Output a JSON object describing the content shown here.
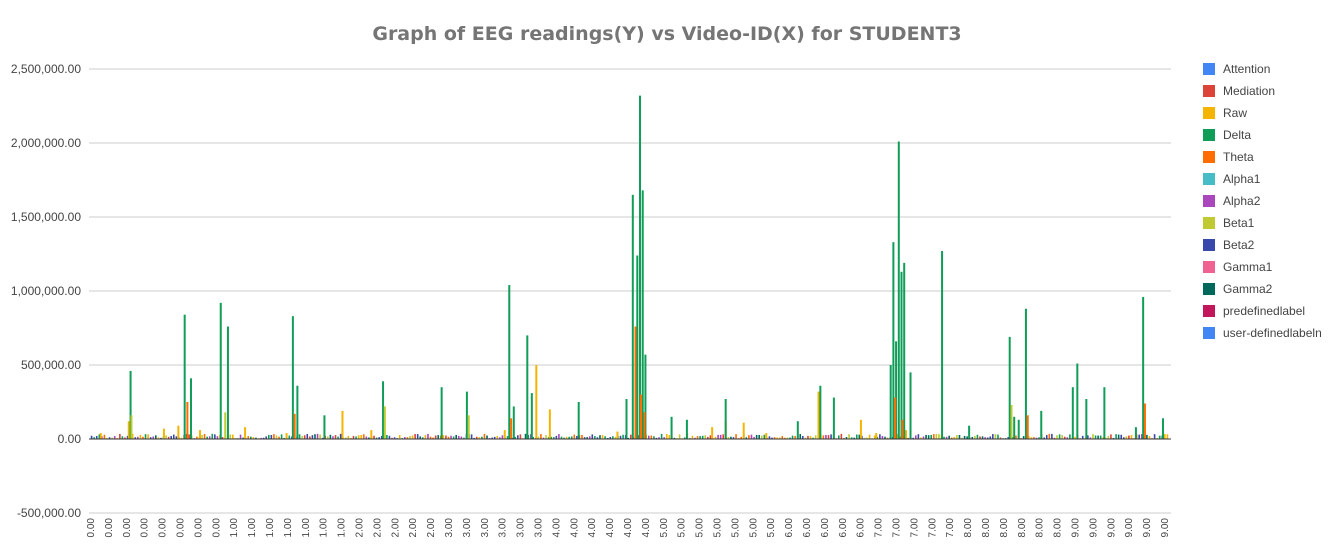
{
  "chart_data": {
    "type": "bar",
    "title": "Graph of EEG readings(Y) vs Video-ID(X) for STUDENT3",
    "xlabel": "",
    "ylabel": "",
    "ylim": [
      -500000,
      2500000
    ],
    "y_ticks": [
      -500000,
      0,
      500000,
      1000000,
      1500000,
      2000000,
      2500000
    ],
    "y_tick_labels": [
      "-500,000.00",
      "0.00",
      "500,000.00",
      "1,000,000.00",
      "1,500,000.00",
      "2,000,000.00",
      "2,500,000.00"
    ],
    "grid": true,
    "legend_position": "right",
    "x_tick_labels": [
      "0.00",
      "0.00",
      "0.00",
      "0.00",
      "0.00",
      "0.00",
      "0.00",
      "0.00",
      "1.00",
      "1.00",
      "1.00",
      "1.00",
      "1.00",
      "1.00",
      "1.00",
      "2.00",
      "2.00",
      "2.00",
      "2.00",
      "2.00",
      "3.00",
      "3.00",
      "3.00",
      "3.00",
      "3.00",
      "3.00",
      "4.00",
      "4.00",
      "4.00",
      "4.00",
      "4.00",
      "4.00",
      "5.00",
      "5.00",
      "5.00",
      "5.00",
      "5.00",
      "5.00",
      "5.00",
      "6.00",
      "6.00",
      "6.00",
      "6.00",
      "6.00",
      "7.00",
      "7.00",
      "7.00",
      "7.00",
      "7.00",
      "8.00",
      "8.00",
      "8.00",
      "8.00",
      "8.00",
      "8.00",
      "9.00",
      "9.00",
      "9.00",
      "9.00",
      "9.00",
      "9.00"
    ],
    "series": [
      {
        "name": "Attention",
        "color": "#4285f4",
        "peaks": []
      },
      {
        "name": "Mediation",
        "color": "#db4437",
        "peaks": []
      },
      {
        "name": "Raw",
        "color": "#f4b400",
        "peaks": [
          [
            0.12,
            40000
          ],
          [
            0.43,
            120000
          ],
          [
            0.82,
            70000
          ],
          [
            0.98,
            90000
          ],
          [
            1.22,
            60000
          ],
          [
            1.72,
            80000
          ],
          [
            2.18,
            40000
          ],
          [
            2.8,
            190000
          ],
          [
            3.12,
            60000
          ],
          [
            4.6,
            60000
          ],
          [
            4.95,
            500000
          ],
          [
            5.1,
            200000
          ],
          [
            5.85,
            50000
          ],
          [
            6.9,
            80000
          ],
          [
            7.05,
            120000
          ],
          [
            7.25,
            110000
          ],
          [
            7.5,
            40000
          ],
          [
            8.08,
            320000
          ],
          [
            8.55,
            130000
          ],
          [
            8.72,
            40000
          ],
          [
            9.05,
            60000
          ]
        ]
      },
      {
        "name": "Delta",
        "color": "#0f9d58",
        "peaks": [
          [
            0.45,
            460000
          ],
          [
            1.05,
            840000
          ],
          [
            1.12,
            410000
          ],
          [
            1.45,
            920000
          ],
          [
            1.53,
            760000
          ],
          [
            2.25,
            830000
          ],
          [
            2.3,
            360000
          ],
          [
            2.6,
            160000
          ],
          [
            3.25,
            390000
          ],
          [
            3.9,
            350000
          ],
          [
            4.18,
            320000
          ],
          [
            4.65,
            1040000
          ],
          [
            4.7,
            220000
          ],
          [
            4.85,
            700000
          ],
          [
            4.9,
            310000
          ],
          [
            5.42,
            250000
          ],
          [
            5.95,
            270000
          ],
          [
            6.02,
            1650000
          ],
          [
            6.07,
            1240000
          ],
          [
            6.1,
            2320000
          ],
          [
            6.13,
            1680000
          ],
          [
            6.16,
            570000
          ],
          [
            6.45,
            150000
          ],
          [
            6.62,
            130000
          ],
          [
            7.05,
            270000
          ],
          [
            7.85,
            120000
          ],
          [
            8.1,
            360000
          ],
          [
            8.25,
            280000
          ],
          [
            8.88,
            500000
          ],
          [
            8.91,
            1330000
          ],
          [
            8.94,
            660000
          ],
          [
            8.97,
            2010000
          ],
          [
            9.0,
            1130000
          ],
          [
            9.03,
            1190000
          ],
          [
            9.1,
            450000
          ],
          [
            9.45,
            1270000
          ],
          [
            9.75,
            90000
          ],
          [
            10.2,
            690000
          ],
          [
            10.25,
            150000
          ],
          [
            10.3,
            130000
          ],
          [
            10.38,
            880000
          ],
          [
            10.55,
            190000
          ],
          [
            10.9,
            350000
          ],
          [
            10.95,
            510000
          ],
          [
            11.05,
            270000
          ],
          [
            11.25,
            350000
          ],
          [
            11.6,
            80000
          ],
          [
            11.68,
            960000
          ],
          [
            11.9,
            140000
          ]
        ]
      },
      {
        "name": "Theta",
        "color": "#ff6d00",
        "peaks": [
          [
            1.08,
            250000
          ],
          [
            2.27,
            170000
          ],
          [
            4.67,
            140000
          ],
          [
            6.05,
            760000
          ],
          [
            6.11,
            300000
          ],
          [
            6.15,
            180000
          ],
          [
            8.93,
            280000
          ],
          [
            9.01,
            130000
          ],
          [
            10.4,
            160000
          ],
          [
            11.7,
            240000
          ]
        ]
      },
      {
        "name": "Alpha1",
        "color": "#46bdc6",
        "peaks": []
      },
      {
        "name": "Alpha2",
        "color": "#ab47bc",
        "peaks": []
      },
      {
        "name": "Beta1",
        "color": "#c0ca33",
        "peaks": [
          [
            0.46,
            160000
          ],
          [
            1.5,
            180000
          ],
          [
            3.27,
            220000
          ],
          [
            4.2,
            160000
          ],
          [
            10.22,
            230000
          ]
        ]
      },
      {
        "name": "Beta2",
        "color": "#3949ab",
        "peaks": []
      },
      {
        "name": "Gamma1",
        "color": "#f06292",
        "peaks": []
      },
      {
        "name": "Gamma2",
        "color": "#00695c",
        "peaks": []
      },
      {
        "name": "predefinedlabel",
        "color": "#c2185b",
        "peaks": []
      },
      {
        "name": "user-definedlabeln",
        "color": "#4285f4",
        "peaks": []
      }
    ]
  }
}
